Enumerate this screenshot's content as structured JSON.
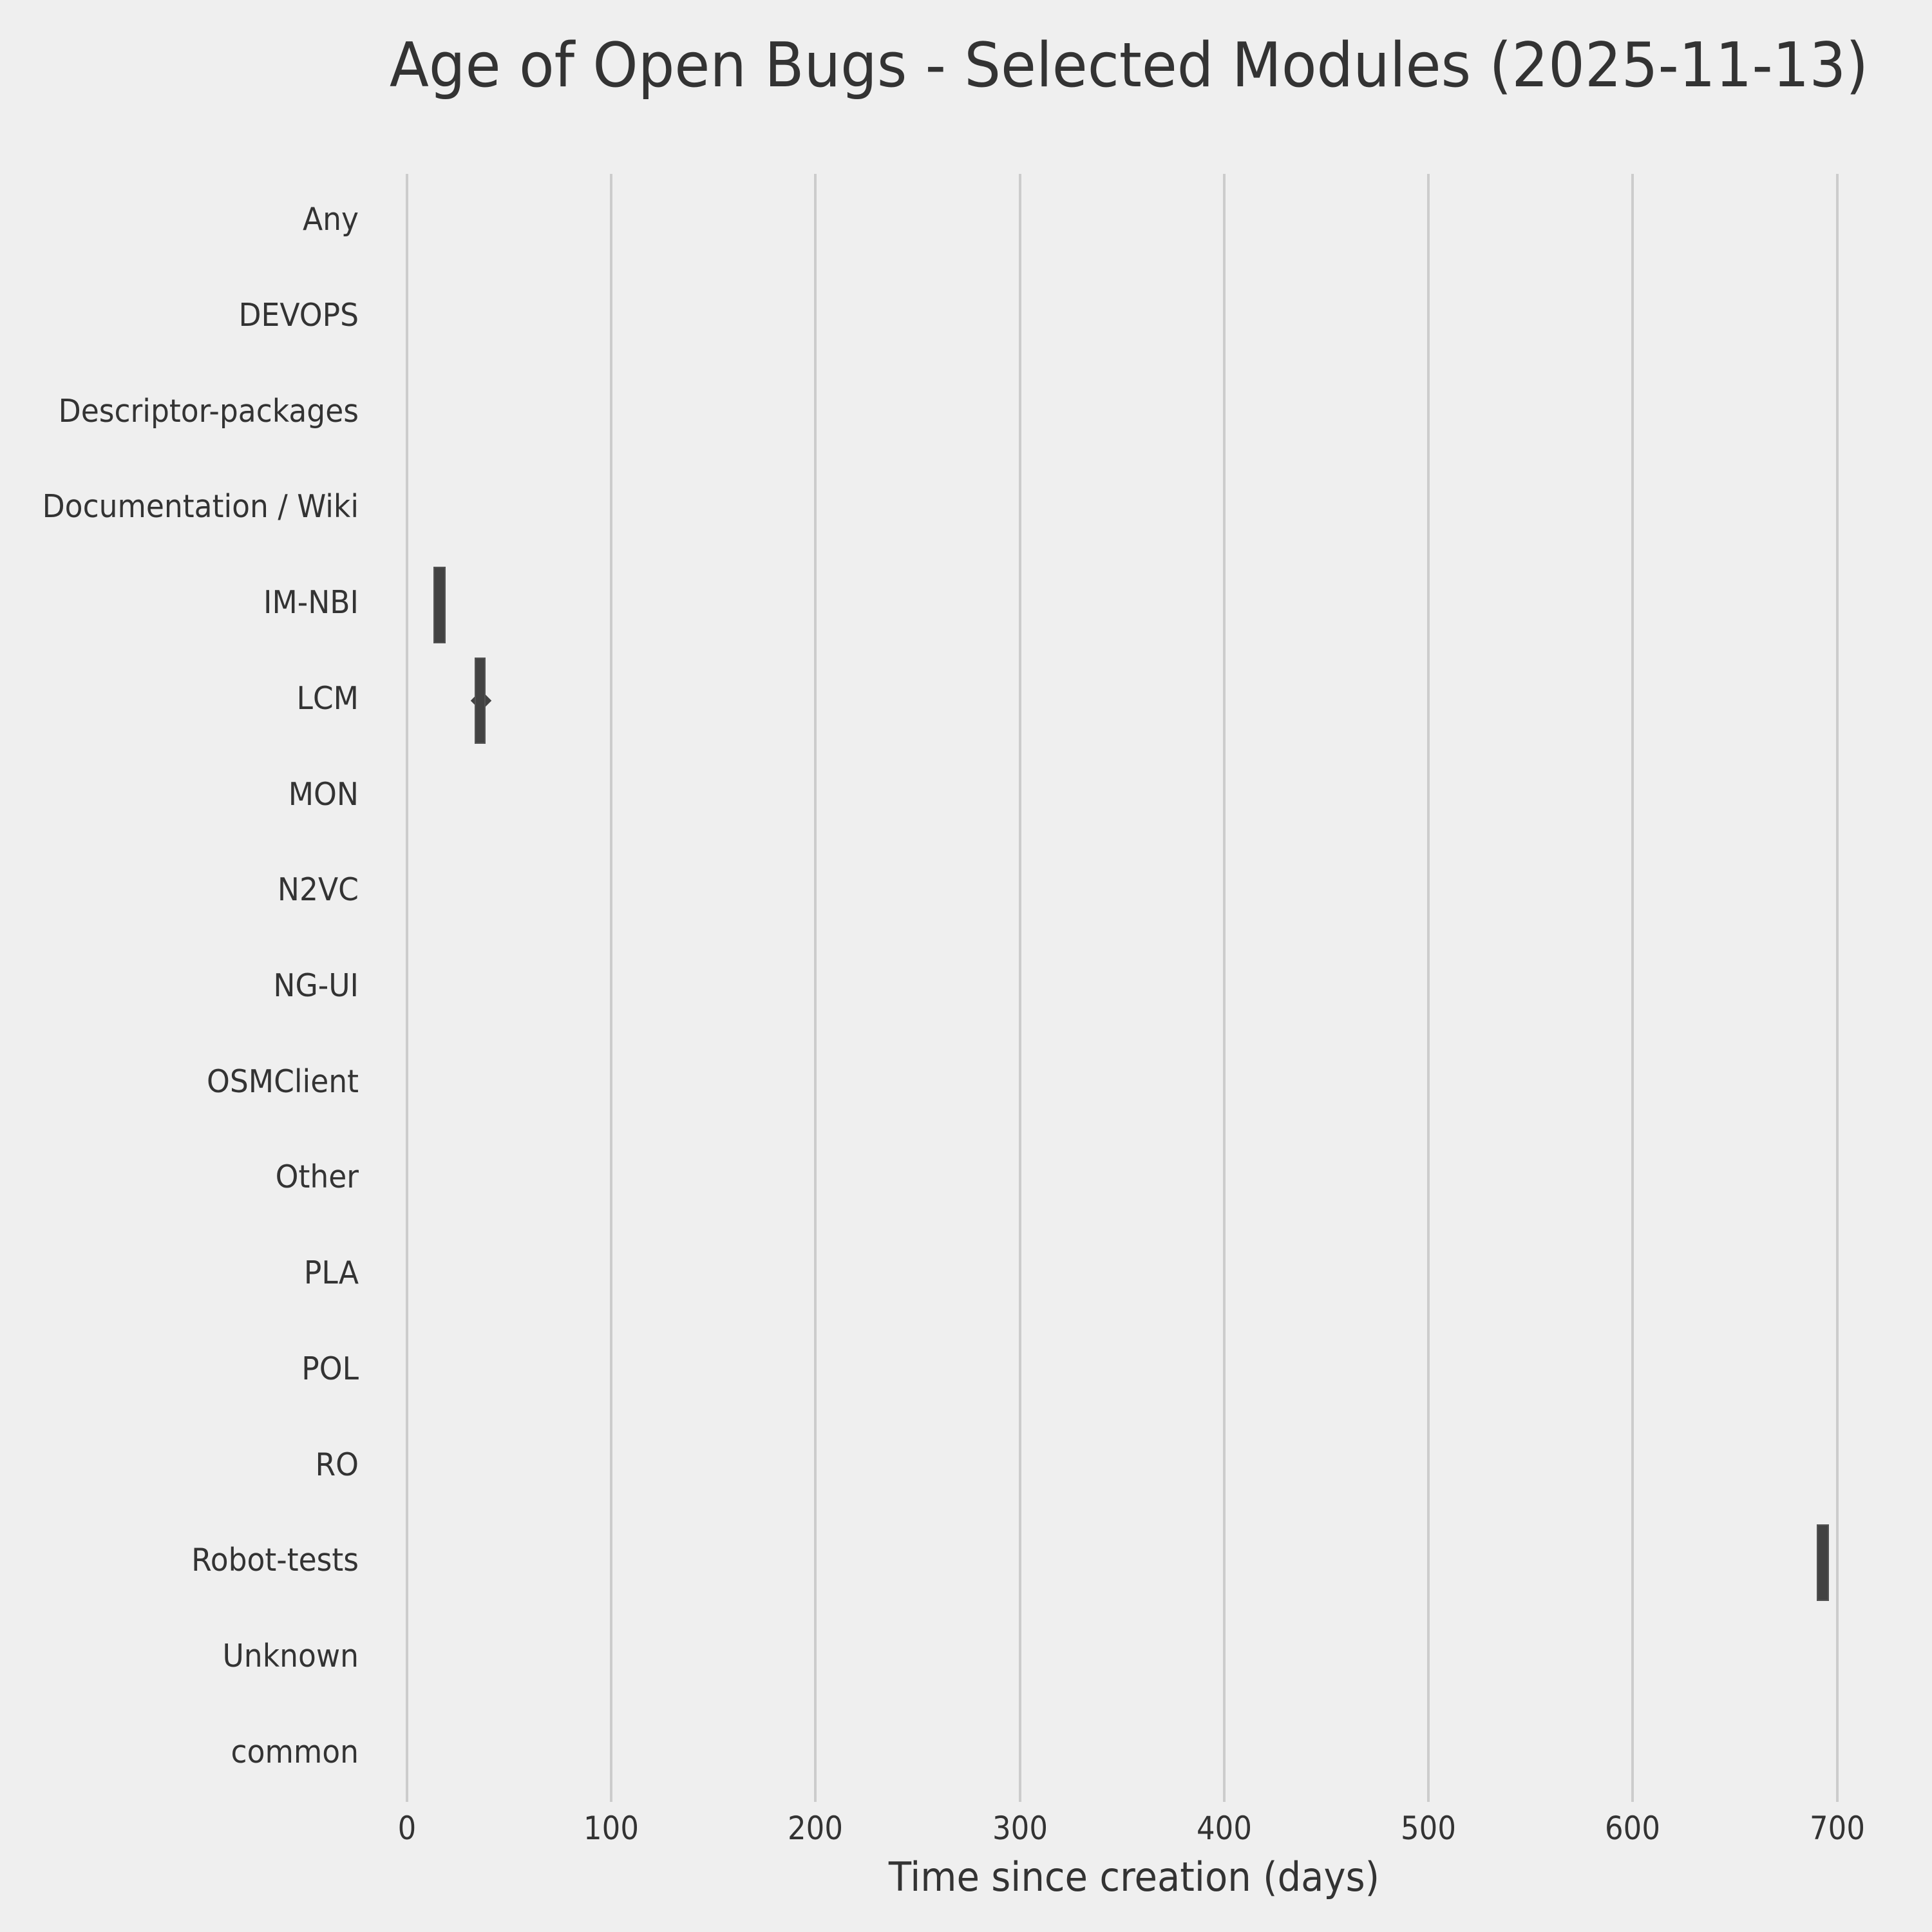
{
  "title": "Age of Open Bugs - Selected Modules (2025-11-13)",
  "chart_data": {
    "type": "violin",
    "orientation": "horizontal",
    "title": "Age of Open Bugs - Selected Modules (2025-11-13)",
    "xlabel": "Time since creation (days)",
    "ylabel": "",
    "categories": [
      "Any",
      "DEVOPS",
      "Descriptor-packages",
      "Documentation / Wiki",
      "IM-NBI",
      "LCM",
      "MON",
      "N2VC",
      "NG-UI",
      "OSMClient",
      "Other",
      "PLA",
      "POL",
      "RO",
      "Robot-tests",
      "Unknown",
      "common"
    ],
    "xticks": [
      0,
      100,
      200,
      300,
      400,
      500,
      600,
      700
    ],
    "xlim": [
      0,
      711
    ],
    "grid": "vertical-only",
    "legend": "none",
    "series": [
      {
        "module": "IM-NBI",
        "min_days": 13,
        "max_days": 19,
        "thickness": 0.8
      },
      {
        "module": "LCM",
        "min_days": 33,
        "max_days": 38.5,
        "thickness": 0.9,
        "median_days": 34.5
      },
      {
        "module": "Robot-tests",
        "min_days": 690,
        "max_days": 696,
        "thickness": 0.8
      }
    ],
    "colors": {
      "background": "#efefef",
      "grid": "#cccccc",
      "marker": "#424242",
      "text": "#333333"
    }
  }
}
